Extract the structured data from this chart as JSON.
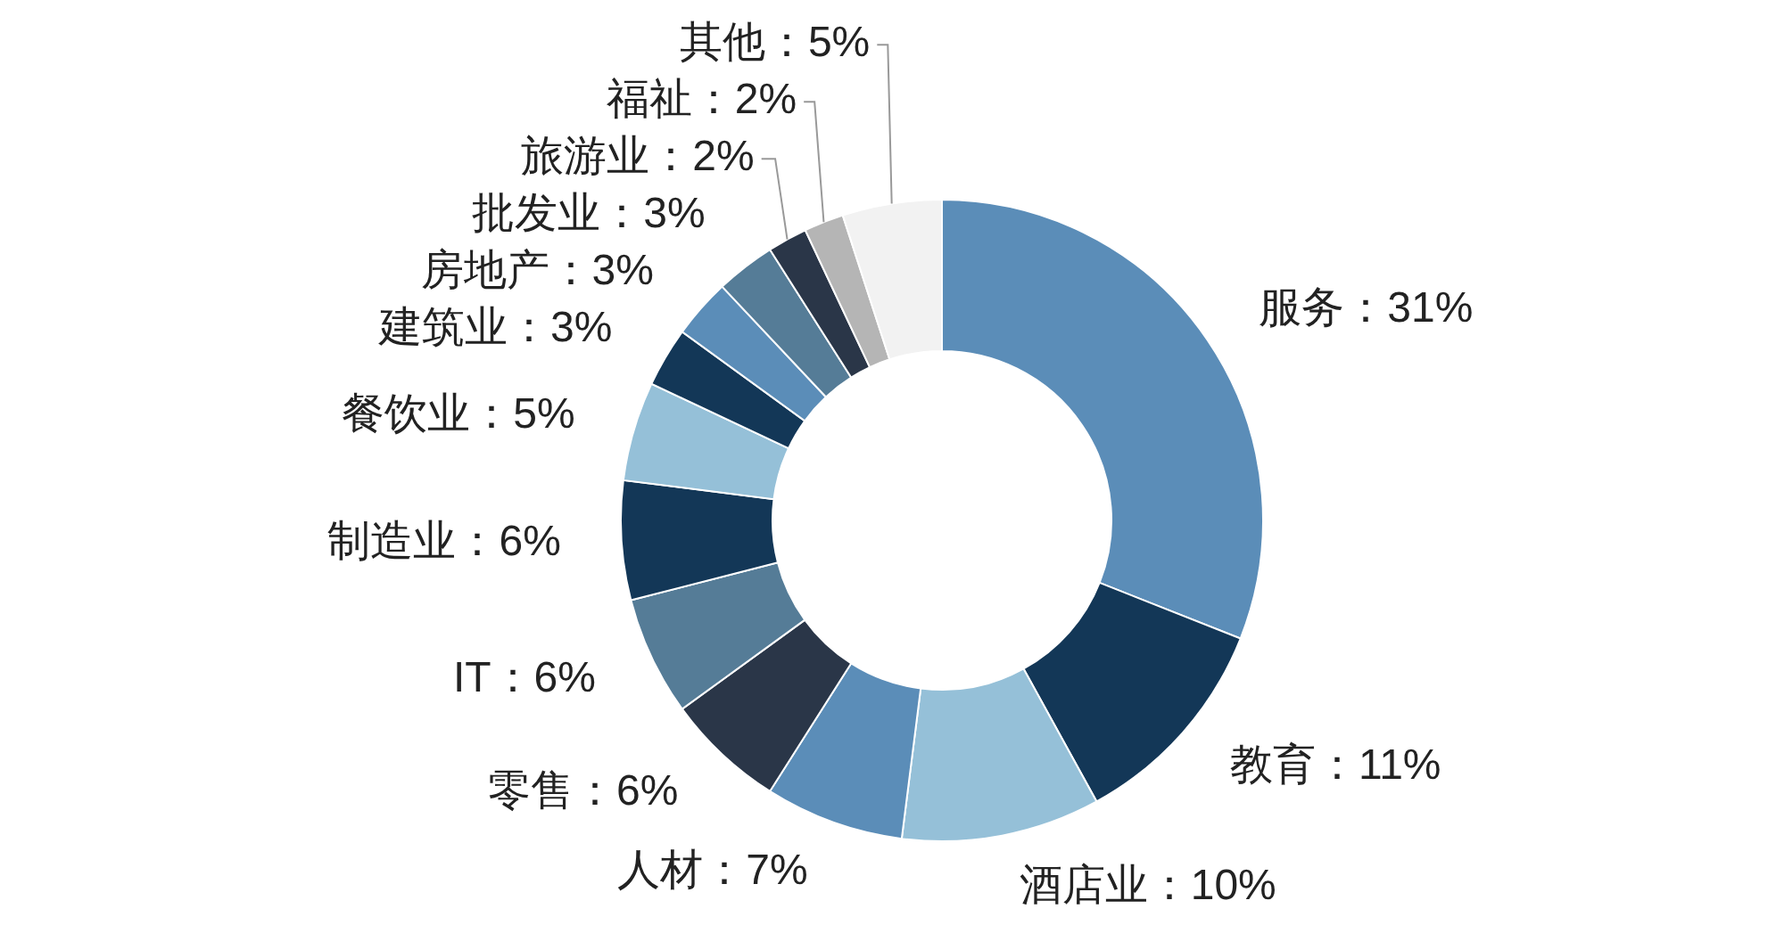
{
  "chart_data": {
    "type": "donut",
    "categories": [
      "服务",
      "教育",
      "酒店业",
      "人材",
      "零售",
      "IT",
      "制造业",
      "餐饮业",
      "建筑业",
      "房地产",
      "批发业",
      "旅游业",
      "福祉",
      "其他"
    ],
    "values": [
      31,
      11,
      10,
      7,
      6,
      6,
      6,
      5,
      3,
      3,
      3,
      2,
      2,
      5
    ],
    "value_labels": [
      "31%",
      "11%",
      "10%",
      "7%",
      "6%",
      "6%",
      "6%",
      "5%",
      "3%",
      "3%",
      "3%",
      "2%",
      "2%",
      "5%"
    ],
    "colors": [
      "#5b8db8",
      "#133757",
      "#95c0d8",
      "#5b8db8",
      "#2a3648",
      "#557c97",
      "#133757",
      "#95c0d8",
      "#133757",
      "#5b8db8",
      "#557c97",
      "#2a3648",
      "#b5b5b5",
      "#f2f2f2"
    ]
  }
}
